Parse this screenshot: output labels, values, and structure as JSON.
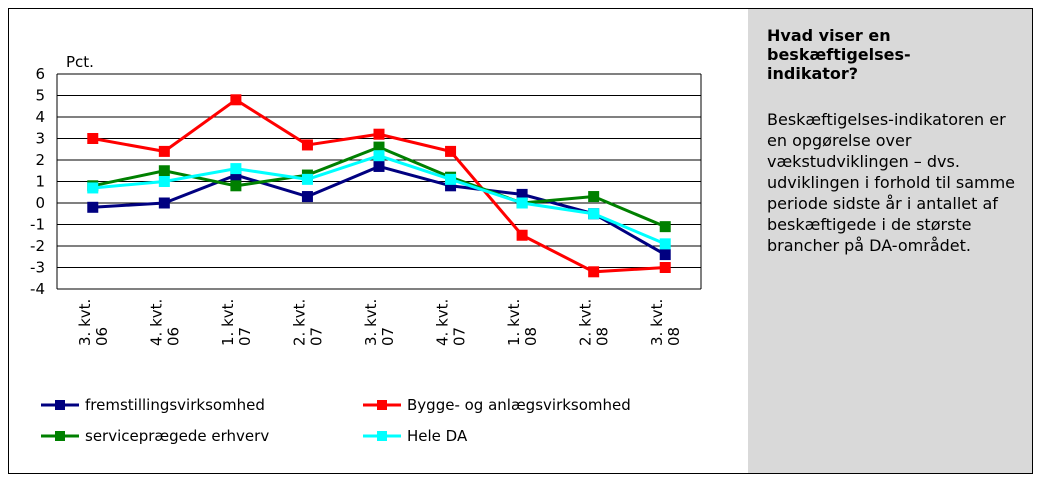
{
  "chart_data": {
    "type": "line",
    "y_label": "Pct.",
    "categories": [
      [
        "3. kvt.",
        "06"
      ],
      [
        "4. kvt.",
        "06"
      ],
      [
        "1. kvt.",
        "07"
      ],
      [
        "2. kvt.",
        "07"
      ],
      [
        "3. kvt.",
        "07"
      ],
      [
        "4. kvt.",
        "07"
      ],
      [
        "1. kvt.",
        "08"
      ],
      [
        "2. kvt.",
        "08"
      ],
      [
        "3. kvt.",
        "08"
      ]
    ],
    "series": [
      {
        "name": "fremstillingsvirksomhed",
        "color": "#000080",
        "values": [
          -0.2,
          0,
          1.3,
          0.3,
          1.7,
          0.8,
          0.4,
          -0.5,
          -2.4
        ]
      },
      {
        "name": "Bygge- og anlægsvirksomhed",
        "color": "#ff0000",
        "values": [
          3.0,
          2.4,
          4.8,
          2.7,
          3.2,
          2.4,
          -1.5,
          -3.2,
          -3.0
        ]
      },
      {
        "name": "serviceprægede erhverv",
        "color": "#008000",
        "values": [
          0.8,
          1.5,
          0.8,
          1.3,
          2.6,
          1.2,
          0.0,
          0.3,
          -1.1
        ]
      },
      {
        "name": "Hele DA",
        "color": "#00ffff",
        "values": [
          0.7,
          1.0,
          1.6,
          1.1,
          2.2,
          1.1,
          0.0,
          -0.5,
          -1.9
        ]
      }
    ],
    "ylim": [
      -4,
      6
    ],
    "yticks": [
      -4,
      -3,
      -2,
      -1,
      0,
      1,
      2,
      3,
      4,
      5,
      6
    ],
    "grid": true
  },
  "info": {
    "title": "Hvad viser en beskæftigelses-indikator?",
    "body": "Beskæftigelses-indikatoren er en opgørelse over vækstudviklingen – dvs. udviklingen i forhold til samme periode sidste år i antallet af beskæftigede i de største brancher på DA-området."
  }
}
